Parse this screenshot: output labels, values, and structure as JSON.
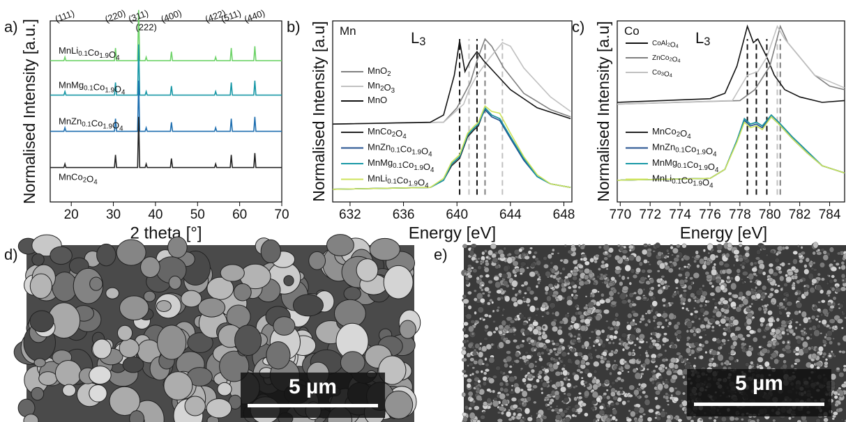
{
  "chart_data": [
    {
      "type": "line",
      "label": "a)",
      "xlabel": "2 theta [°]",
      "ylabel": "Normalised Intensity [a.u.]",
      "xlim": [
        15,
        70
      ],
      "xticks": [
        20,
        30,
        40,
        50,
        60,
        70
      ],
      "ylim": [
        0,
        100
      ],
      "peak_labels": [
        {
          "x": 18.5,
          "label": "(111)"
        },
        {
          "x": 30.5,
          "label": "(220)"
        },
        {
          "x": 36,
          "label": "(311)"
        },
        {
          "x": 37.8,
          "label": "(222)"
        },
        {
          "x": 43.8,
          "label": "(400)"
        },
        {
          "x": 54.3,
          "label": "(422)"
        },
        {
          "x": 58,
          "label": "(511)"
        },
        {
          "x": 63.6,
          "label": "(440)"
        }
      ],
      "series": [
        {
          "name": "MnLi0.1Co1.9O4",
          "color": "#6fd36a",
          "x": [
            15,
            18.25,
            18.5,
            18.75,
            30.25,
            30.5,
            30.75,
            35.75,
            36,
            36.25,
            37.55,
            37.8,
            38.05,
            43.55,
            43.8,
            44.05,
            54.05,
            54.3,
            54.55,
            57.75,
            58,
            58.25,
            63.35,
            63.6,
            63.85,
            70
          ],
          "values": [
            78,
            78,
            80,
            78,
            78,
            85,
            78,
            78,
            106,
            78,
            78,
            80,
            78,
            78,
            83,
            78,
            78,
            80,
            78,
            78,
            85,
            78,
            78,
            86,
            78,
            78
          ]
        },
        {
          "name": "MnMg0.1Co1.9O4",
          "color": "#1797a6",
          "x": [
            15,
            18.25,
            18.5,
            18.75,
            30.25,
            30.5,
            30.75,
            35.75,
            36,
            36.25,
            37.55,
            37.8,
            38.05,
            43.55,
            43.8,
            44.05,
            54.05,
            54.3,
            54.55,
            57.75,
            58,
            58.25,
            63.35,
            63.6,
            63.85,
            70
          ],
          "values": [
            59,
            59,
            61,
            59,
            59,
            66,
            59,
            59,
            87,
            59,
            59,
            61,
            59,
            59,
            64,
            59,
            59,
            61,
            59,
            59,
            66,
            59,
            59,
            67,
            59,
            59
          ]
        },
        {
          "name": "MnZn0.1Co1.9O4",
          "color": "#1f6fb0",
          "x": [
            15,
            18.25,
            18.5,
            18.75,
            30.25,
            30.5,
            30.75,
            35.75,
            36,
            36.25,
            37.55,
            37.8,
            38.05,
            43.55,
            43.8,
            44.05,
            54.05,
            54.3,
            54.55,
            57.75,
            58,
            58.25,
            63.35,
            63.6,
            63.85,
            70
          ],
          "values": [
            39,
            39,
            41,
            39,
            39,
            46,
            39,
            39,
            67,
            39,
            39,
            41,
            39,
            39,
            44,
            39,
            39,
            41,
            39,
            39,
            46,
            39,
            39,
            47,
            39,
            39
          ]
        },
        {
          "name": "MnCo2O4",
          "color": "#222222",
          "x": [
            15,
            18.25,
            18.5,
            18.75,
            30.25,
            30.5,
            30.75,
            35.75,
            36,
            36.25,
            37.55,
            37.8,
            38.05,
            43.55,
            43.8,
            44.05,
            54.05,
            54.3,
            54.55,
            57.75,
            58,
            58.25,
            63.35,
            63.6,
            63.85,
            70
          ],
          "values": [
            19,
            19,
            21,
            19,
            19,
            26,
            19,
            19,
            47,
            19,
            19,
            21,
            19,
            19,
            24,
            19,
            19,
            21,
            19,
            19,
            26,
            19,
            19,
            27,
            19,
            19
          ]
        }
      ]
    },
    {
      "type": "line",
      "label": "b)",
      "xlabel": "Energy [eV]",
      "ylabel": "Normalised Intensity [a.u]",
      "xlim": [
        630.7,
        648.6
      ],
      "xticks": [
        632,
        636,
        640,
        644,
        648
      ],
      "ylim": [
        0,
        100
      ],
      "annotations": [
        "Mn",
        "L3"
      ],
      "vlines": [
        {
          "x": 640.2,
          "color": "#111111"
        },
        {
          "x": 640.9,
          "color": "#c0c0c0"
        },
        {
          "x": 641.5,
          "color": "#111111"
        },
        {
          "x": 642.1,
          "color": "#7f7f7f"
        },
        {
          "x": 643.4,
          "color": "#c0c0c0"
        }
      ],
      "series": [
        {
          "name": "MnO2",
          "color": "#7f7f7f",
          "x": [
            630.7,
            639,
            640,
            641,
            641.5,
            642.1,
            642.6,
            643.5,
            645,
            647,
            648.5
          ],
          "values": [
            43,
            44,
            52,
            66,
            78,
            90,
            86,
            74,
            60,
            51,
            47
          ]
        },
        {
          "name": "Mn2O3",
          "color": "#c0c0c0",
          "x": [
            630.7,
            639,
            640.5,
            640.9,
            641.5,
            642.5,
            643.4,
            644,
            645,
            647,
            648.5
          ],
          "values": [
            43,
            44,
            54,
            62,
            70,
            80,
            88,
            86,
            74,
            58,
            50
          ]
        },
        {
          "name": "MnO",
          "color": "#111111",
          "x": [
            630.7,
            638,
            639,
            639.8,
            640.2,
            640.6,
            641,
            641.5,
            642,
            643,
            644,
            646,
            648.5
          ],
          "values": [
            43,
            44,
            48,
            70,
            89,
            72,
            78,
            83,
            78,
            70,
            62,
            52,
            46
          ]
        },
        {
          "name": "MnCo2O4",
          "color": "#222222",
          "x": [
            630.7,
            638,
            639,
            639.6,
            640.2,
            640.8,
            641.3,
            641.6,
            642.1,
            642.6,
            643.2,
            644,
            645,
            646,
            647,
            648.5
          ],
          "values": [
            7,
            8,
            12,
            20,
            24,
            36,
            40,
            42,
            52,
            48,
            46,
            36,
            24,
            14,
            10,
            8
          ]
        },
        {
          "name": "MnZn0.1Co1.9O4",
          "color": "#1f4e8c",
          "x": [
            630.7,
            638,
            639,
            639.6,
            640.2,
            640.8,
            641.3,
            641.6,
            642.1,
            642.6,
            643.2,
            644,
            645,
            646,
            647,
            648.5
          ],
          "values": [
            7,
            8,
            12,
            21,
            25,
            37,
            41,
            43,
            51,
            47,
            45,
            35,
            23,
            14,
            10,
            8
          ]
        },
        {
          "name": "MnMg0.1Co1.9O4",
          "color": "#1797a6",
          "x": [
            630.7,
            638,
            639,
            639.6,
            640.2,
            640.8,
            641.3,
            641.6,
            642.1,
            642.6,
            643.2,
            644,
            645,
            646,
            647,
            648.5
          ],
          "values": [
            7,
            8,
            12,
            21,
            25,
            37,
            41,
            43,
            52,
            48,
            46,
            36,
            24,
            14,
            10,
            8
          ]
        },
        {
          "name": "MnLi0.1Co1.9O4",
          "color": "#cde35a",
          "x": [
            630.7,
            638,
            639,
            639.6,
            640.2,
            640.8,
            641.3,
            641.6,
            642.1,
            642.6,
            643.2,
            644,
            645,
            646,
            647,
            648.5
          ],
          "values": [
            7,
            8,
            13,
            22,
            26,
            38,
            42,
            44,
            53,
            50,
            49,
            38,
            25,
            15,
            10,
            8
          ]
        }
      ]
    },
    {
      "type": "line",
      "label": "c)",
      "xlabel": "Energy [eV]",
      "ylabel": "Normalised Intensity [a.u]",
      "xlim": [
        769.8,
        785
      ],
      "xticks": [
        770,
        772,
        774,
        776,
        778,
        780,
        782,
        784
      ],
      "ylim": [
        0,
        100
      ],
      "annotations": [
        "Co",
        "L3"
      ],
      "vlines": [
        {
          "x": 778.5,
          "color": "#111111"
        },
        {
          "x": 779.1,
          "color": "#111111"
        },
        {
          "x": 779.8,
          "color": "#111111"
        },
        {
          "x": 780.5,
          "color": "#c0c0c0"
        },
        {
          "x": 780.7,
          "color": "#7f7f7f"
        }
      ],
      "series": [
        {
          "name": "CoAl2O4",
          "color": "#111111",
          "x": [
            769.8,
            776,
            777,
            777.8,
            778.5,
            778.9,
            779.2,
            779.8,
            780.3,
            781,
            782,
            783.5,
            785
          ],
          "values": [
            55,
            57,
            60,
            75,
            97,
            88,
            90,
            80,
            70,
            62,
            58,
            55,
            56
          ]
        },
        {
          "name": "ZnCo2O4",
          "color": "#7f7f7f",
          "x": [
            769.8,
            778,
            779,
            780,
            780.7,
            781.2,
            782,
            783,
            784,
            785
          ],
          "values": [
            54,
            56,
            62,
            75,
            97,
            88,
            80,
            70,
            64,
            62
          ]
        },
        {
          "name": "Co3O4",
          "color": "#c0c0c0",
          "x": [
            769.8,
            777.5,
            778.5,
            779.2,
            779.8,
            780.5,
            781,
            782,
            783,
            785
          ],
          "values": [
            54,
            56,
            70,
            72,
            80,
            97,
            90,
            80,
            70,
            63
          ]
        },
        {
          "name": "MnCo2O4",
          "color": "#222222",
          "x": [
            769.8,
            776,
            777,
            777.8,
            778.3,
            778.7,
            779.1,
            779.5,
            780.1,
            780.6,
            781.5,
            782.5,
            783.5,
            785
          ],
          "values": [
            12,
            13,
            18,
            34,
            46,
            43,
            44,
            42,
            48,
            44,
            36,
            28,
            20,
            16
          ]
        },
        {
          "name": "MnZn0.1Co1.9O4",
          "color": "#1f4e8c",
          "x": [
            769.8,
            776,
            777,
            777.8,
            778.3,
            778.7,
            779.1,
            779.5,
            780.1,
            780.6,
            781.5,
            782.5,
            783.5,
            785
          ],
          "values": [
            12,
            13,
            18,
            34,
            45,
            42,
            43,
            41,
            47,
            43,
            35,
            27,
            20,
            16
          ]
        },
        {
          "name": "MnMg0.1Co1.9O4",
          "color": "#1797a6",
          "x": [
            769.8,
            776,
            777,
            777.8,
            778.3,
            778.7,
            779.1,
            779.5,
            780.1,
            780.6,
            781.5,
            782.5,
            783.5,
            785
          ],
          "values": [
            12,
            13,
            18,
            34,
            46,
            43,
            44,
            42,
            48,
            44,
            36,
            28,
            20,
            16
          ]
        },
        {
          "name": "MnLi0.1Co1.9O4",
          "color": "#cde35a",
          "x": [
            769.8,
            776,
            777,
            777.8,
            778.3,
            778.7,
            779.1,
            779.5,
            780.1,
            780.6,
            781.5,
            782.5,
            783.5,
            785
          ],
          "values": [
            12,
            13,
            18,
            33,
            44,
            41,
            42,
            40,
            47,
            43,
            35,
            27,
            20,
            16
          ]
        }
      ]
    }
  ],
  "images": [
    {
      "label": "d)",
      "scale_bar": "5 µm"
    },
    {
      "label": "e)",
      "scale_bar": "5 µm"
    }
  ]
}
